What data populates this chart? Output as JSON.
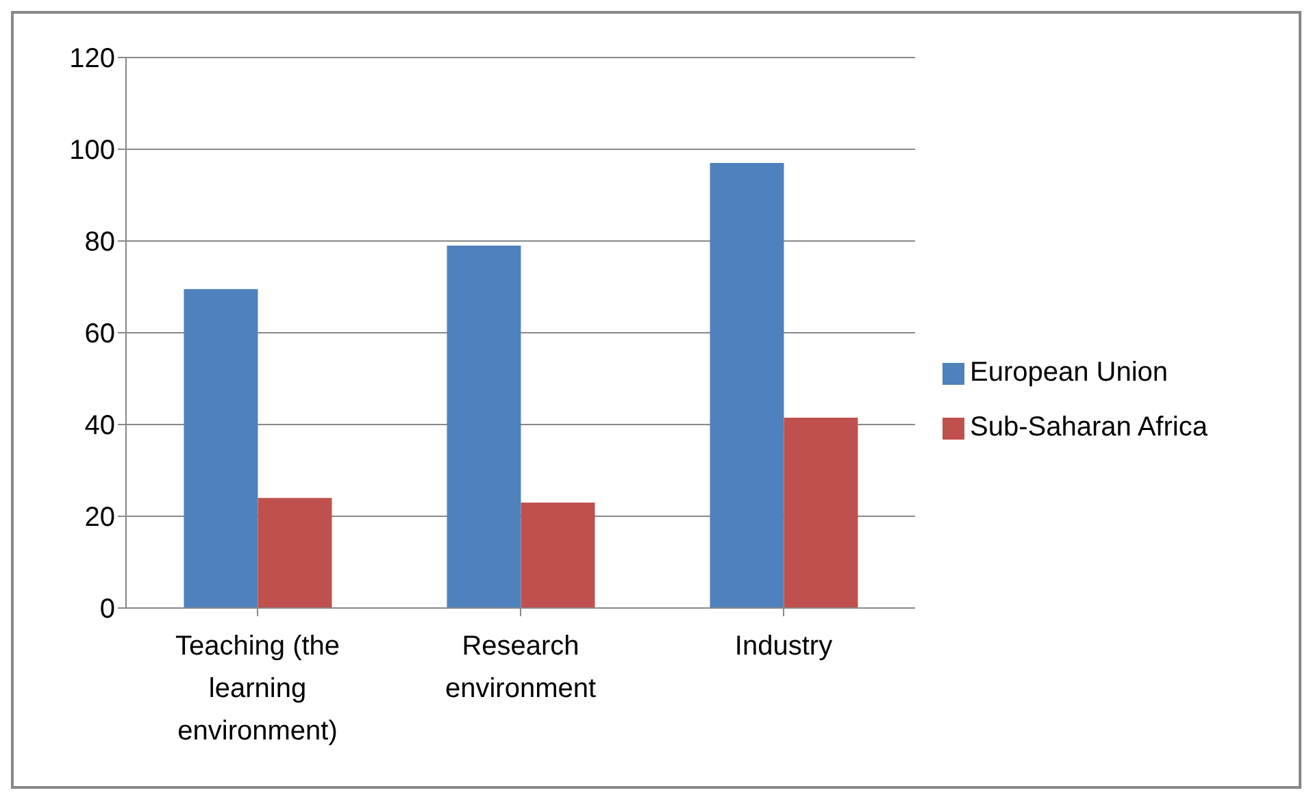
{
  "chart_data": {
    "type": "bar",
    "categories": [
      "Teaching (the learning environment)",
      "Research environment",
      "Industry"
    ],
    "series": [
      {
        "name": "European Union",
        "color": "#4f81bd",
        "values": [
          69.5,
          79,
          97
        ]
      },
      {
        "name": "Sub-Saharan Africa",
        "color": "#c0504d",
        "values": [
          24,
          23,
          41.5
        ]
      }
    ],
    "ylim": [
      0,
      120
    ],
    "yticks": [
      0,
      20,
      40,
      60,
      80,
      100,
      120
    ],
    "grid": "y",
    "legend": "right"
  }
}
